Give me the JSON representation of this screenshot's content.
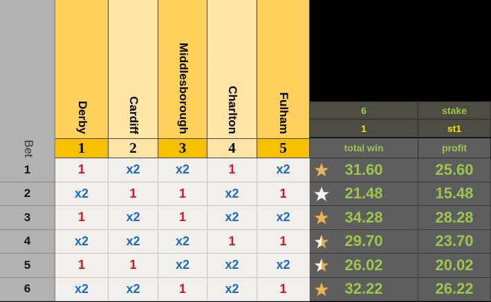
{
  "bet_label": "Bet",
  "teams": [
    {
      "name": "Derby",
      "number": "1"
    },
    {
      "name": "Cardiff",
      "number": "2"
    },
    {
      "name": "Middlesborough",
      "number": "3"
    },
    {
      "name": "Charlton",
      "number": "4"
    },
    {
      "name": "Fulham",
      "number": "5"
    }
  ],
  "panel": {
    "top_left_1": "6",
    "top_right_1": "stake",
    "top_left_2": "1",
    "top_right_2": "st1",
    "total_win_label": "total win",
    "profit_label": "profit"
  },
  "rows": [
    {
      "bet": "1",
      "picks": [
        "1",
        "x2",
        "x2",
        "1",
        "x2"
      ],
      "star": "gold",
      "total_win": "31.60",
      "profit": "25.60"
    },
    {
      "bet": "2",
      "picks": [
        "x2",
        "1",
        "1",
        "x2",
        "1"
      ],
      "star": "white",
      "total_win": "21.48",
      "profit": "15.48"
    },
    {
      "bet": "3",
      "picks": [
        "1",
        "x2",
        "1",
        "x2",
        "x2"
      ],
      "star": "gold",
      "total_win": "34.28",
      "profit": "28.28"
    },
    {
      "bet": "4",
      "picks": [
        "x2",
        "x2",
        "x2",
        "1",
        "1"
      ],
      "star": "half",
      "total_win": "29.70",
      "profit": "23.70"
    },
    {
      "bet": "5",
      "picks": [
        "1",
        "1",
        "x2",
        "x2",
        "x2"
      ],
      "star": "half",
      "total_win": "26.02",
      "profit": "20.02"
    },
    {
      "bet": "6",
      "picks": [
        "x2",
        "x2",
        "1",
        "x2",
        "1"
      ],
      "star": "gold",
      "total_win": "32.22",
      "profit": "26.22"
    }
  ],
  "colors": {
    "pick_one": "#e0101c",
    "pick_x2": "#1a69c4",
    "value_green": "#9ac84c",
    "header_yellow": "#f6c000"
  }
}
